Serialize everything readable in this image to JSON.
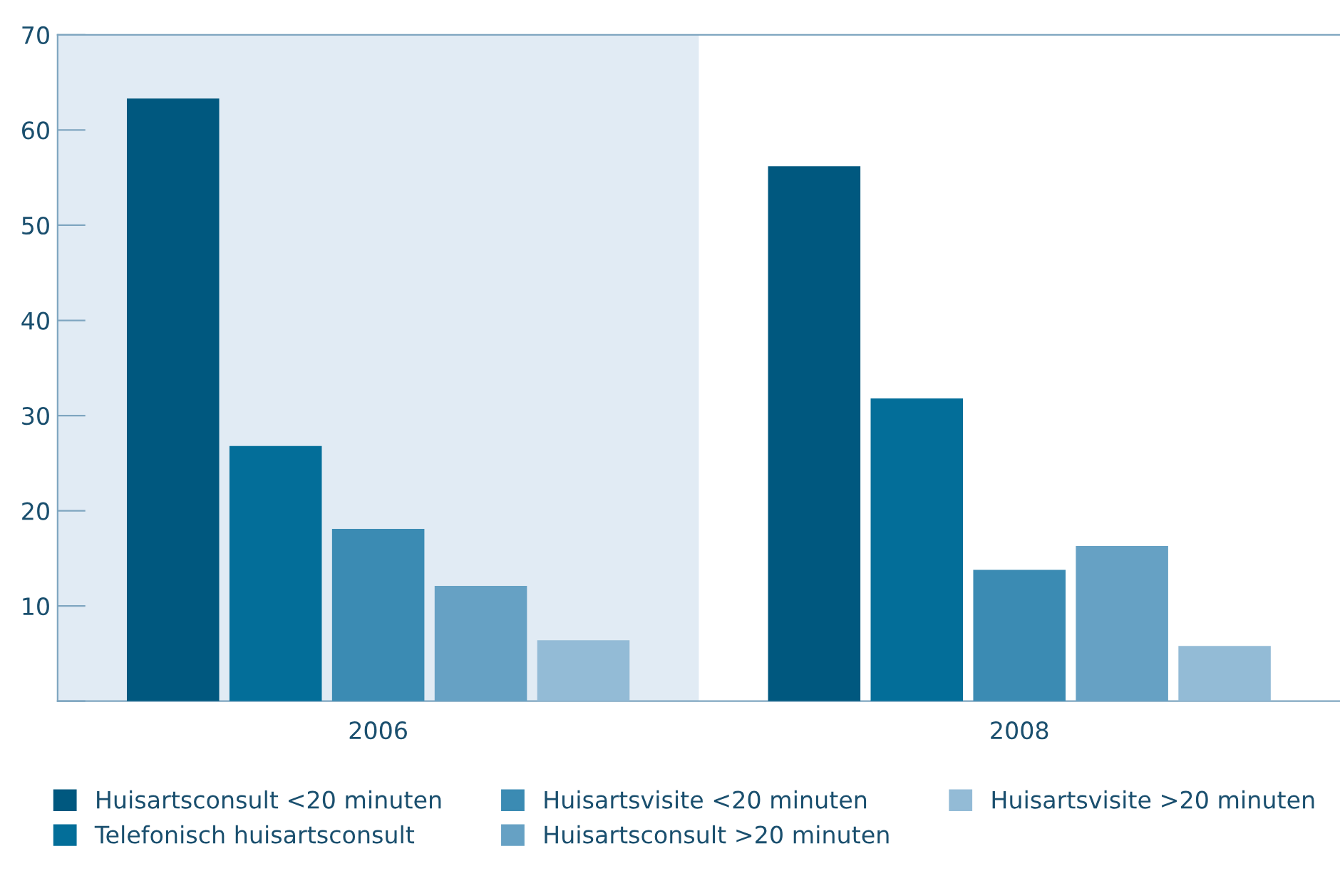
{
  "chart_data": {
    "type": "bar",
    "categories": [
      "2006",
      "2008"
    ],
    "series": [
      {
        "name": "Huisartsconsult <20 minuten",
        "color": "#00587f",
        "values": [
          63.3,
          56.2
        ]
      },
      {
        "name": "Telefonisch huisartsconsult",
        "color": "#036e99",
        "values": [
          26.8,
          31.8
        ]
      },
      {
        "name": "Huisartsvisite <20 minuten",
        "color": "#3b8bb3",
        "values": [
          18.1,
          13.8
        ]
      },
      {
        "name": "Huisartsconsult >20 minuten",
        "color": "#66a1c4",
        "values": [
          12.1,
          16.3
        ]
      },
      {
        "name": "Huisartsvisite >20 minuten",
        "color": "#93bbd6",
        "values": [
          6.4,
          5.8
        ]
      }
    ],
    "ylim": [
      0,
      70
    ],
    "yticks": [
      {
        "value": 0,
        "label": null
      },
      10,
      20,
      30,
      40,
      50,
      60,
      70
    ],
    "bands": [
      {
        "axis": "x",
        "from": "2006",
        "to": "2006",
        "color": "#e1ebf4"
      }
    ],
    "grid": false,
    "legend": "bottom"
  }
}
